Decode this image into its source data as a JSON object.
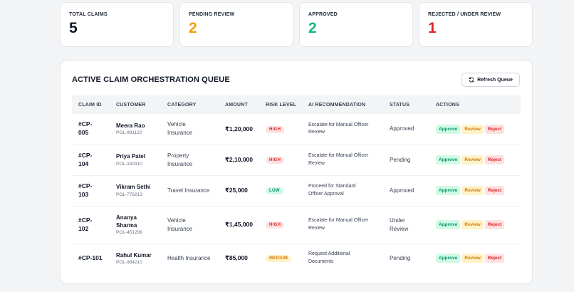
{
  "stats": [
    {
      "label": "TOTAL CLAIMS",
      "value": "5",
      "color": "#111827"
    },
    {
      "label": "PENDING REVIEW",
      "value": "2",
      "color": "#f59e0b"
    },
    {
      "label": "APPROVED",
      "value": "2",
      "color": "#10b981"
    },
    {
      "label": "REJECTED / UNDER REVIEW",
      "value": "1",
      "color": "#dc2626"
    }
  ],
  "panel": {
    "title": "ACTIVE CLAIM ORCHESTRATION QUEUE",
    "refresh_label": "Refresh Queue"
  },
  "table": {
    "headers": [
      "CLAIM ID",
      "CUSTOMER",
      "CATEGORY",
      "AMOUNT",
      "RISK LEVEL",
      "AI RECOMMENDATION",
      "STATUS",
      "ACTIONS"
    ],
    "actions": {
      "approve": "Approve",
      "review": "Review",
      "reject": "Reject"
    },
    "rows": [
      {
        "id_line1": "#CP-",
        "id_line2": "005",
        "name": "Meera Rao",
        "name2": "",
        "policy": "POL-991122",
        "category": "Vehicle",
        "category2": "Insurance",
        "amount": "₹1,20,000",
        "risk": "HIGH",
        "rec1": "Escalate for Manual Officer",
        "rec2": "Review",
        "status1": "Approved",
        "status2": ""
      },
      {
        "id_line1": "#CP-",
        "id_line2": "104",
        "name": "Priya Patel",
        "name2": "",
        "policy": "POL-332910",
        "category": "Property",
        "category2": "Insurance",
        "amount": "₹2,10,000",
        "risk": "HIGH",
        "rec1": "Escalate for Manual Officer",
        "rec2": "Review",
        "status1": "Pending",
        "status2": ""
      },
      {
        "id_line1": "#CP-",
        "id_line2": "103",
        "name": "Vikram Sethi",
        "name2": "",
        "policy": "POL-778213",
        "category": "Travel Insurance",
        "category2": "",
        "amount": "₹25,000",
        "risk": "LOW",
        "rec1": "Proceed for Standard",
        "rec2": "Officer Approval",
        "status1": "Approved",
        "status2": ""
      },
      {
        "id_line1": "#CP-",
        "id_line2": "102",
        "name": "Ananya",
        "name2": "Sharma",
        "policy": "POL-451299",
        "category": "Vehicle",
        "category2": "Insurance",
        "amount": "₹1,45,000",
        "risk": "HIGH",
        "rec1": "Escalate for Manual Officer",
        "rec2": "Review",
        "status1": "Under",
        "status2": "Review"
      },
      {
        "id_line1": "#CP-101",
        "id_line2": "",
        "name": "Rahul Kumar",
        "name2": "",
        "policy": "POL-984210",
        "category": "Health Insurance",
        "category2": "",
        "amount": "₹85,000",
        "risk": "MEDIUM",
        "rec1": "Request Additional",
        "rec2": "Documents",
        "status1": "Pending",
        "status2": ""
      }
    ]
  }
}
